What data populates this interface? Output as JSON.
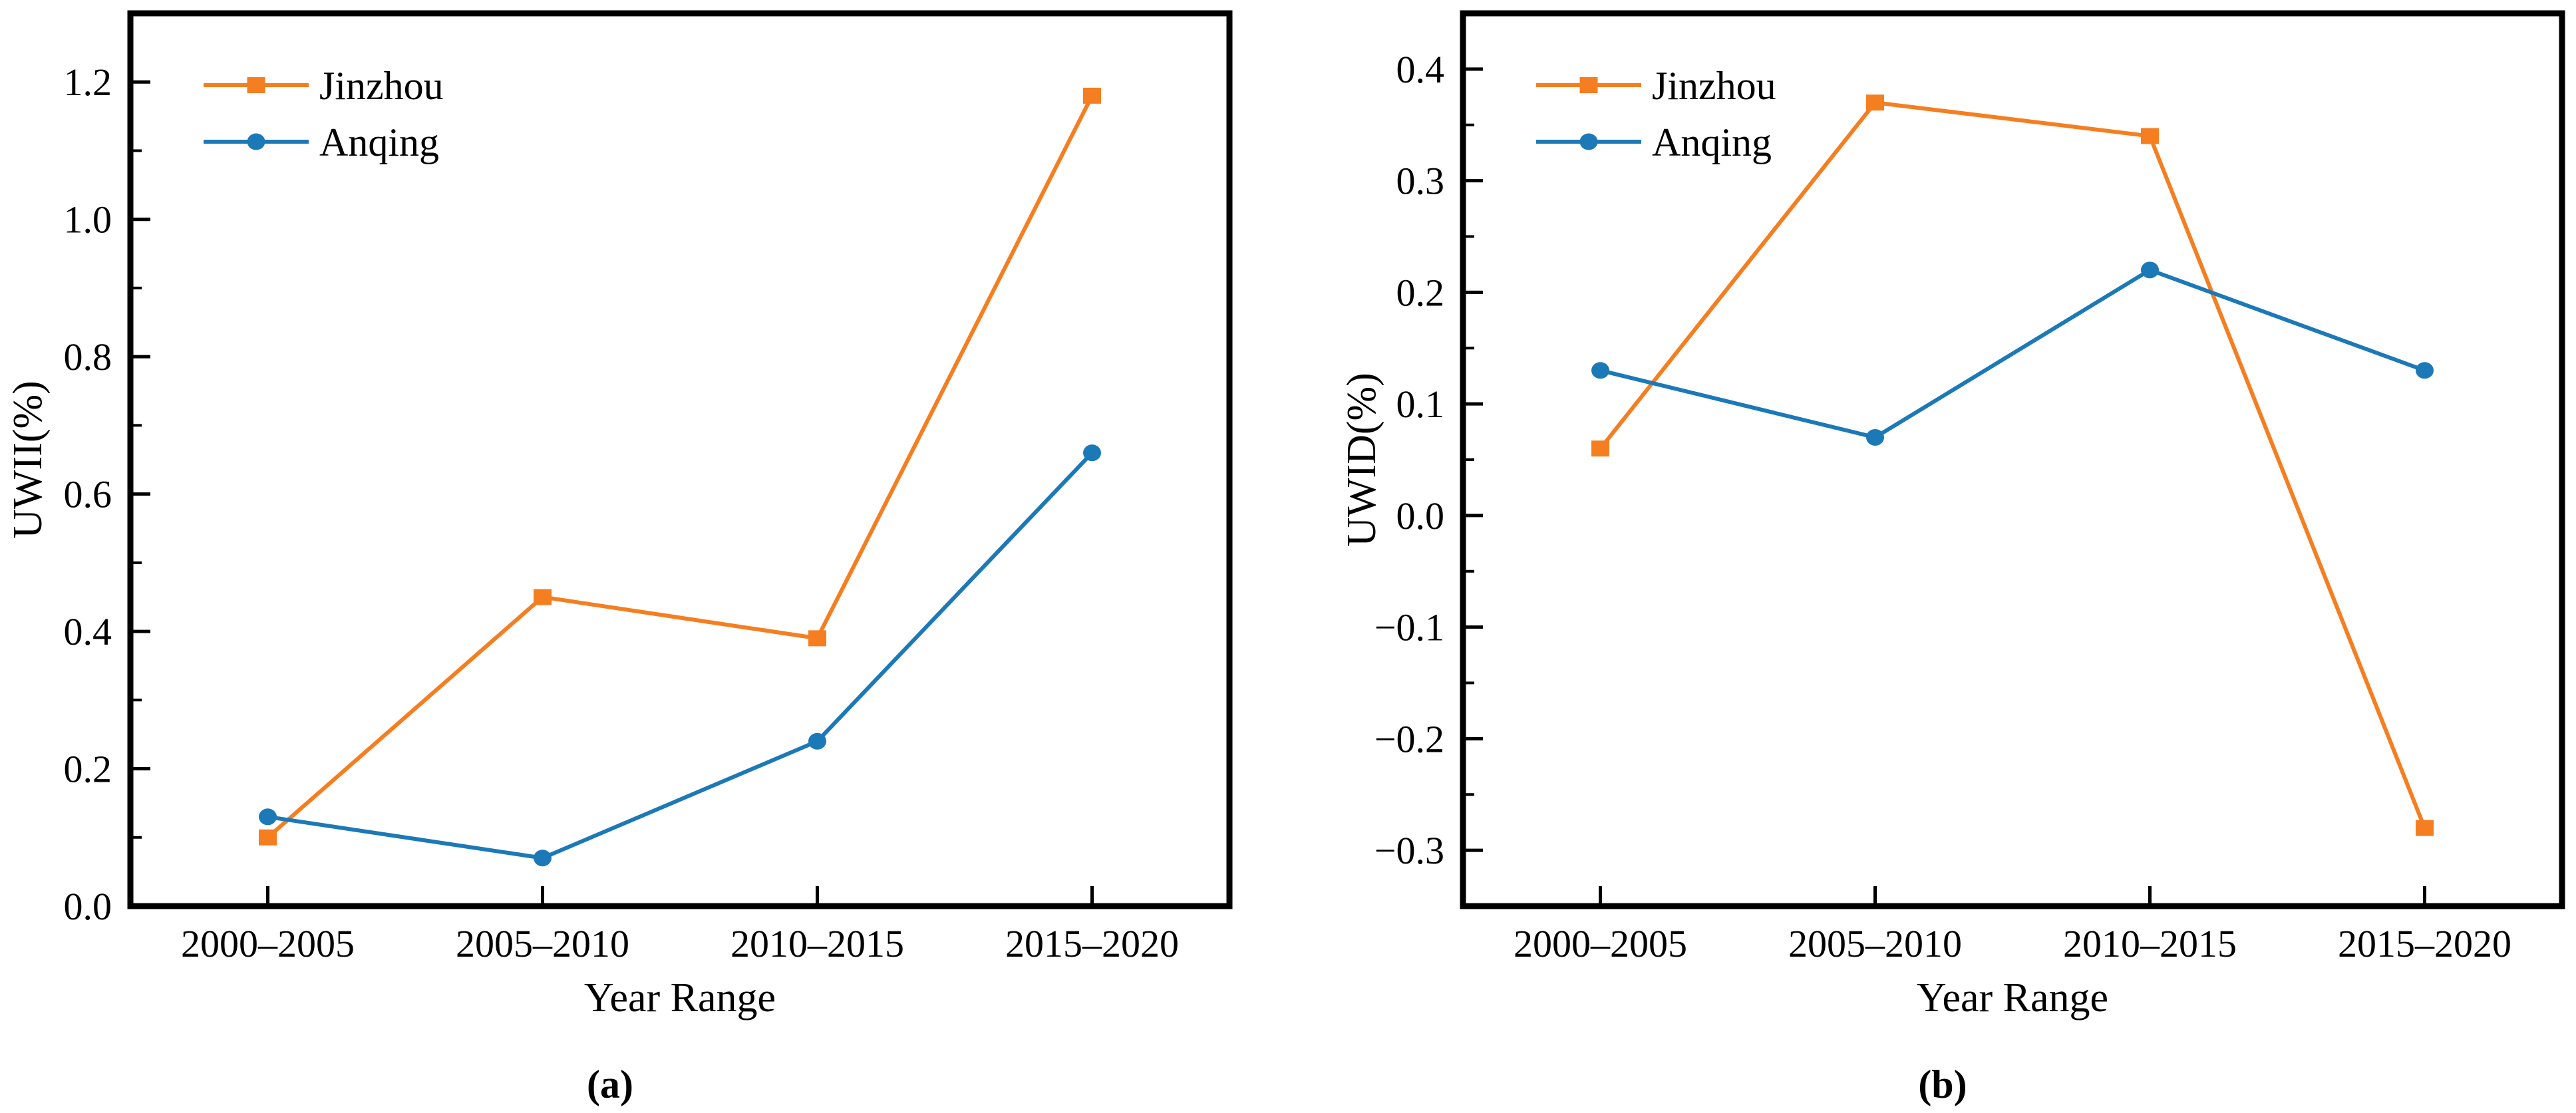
{
  "figure": {
    "background": "#ffffff",
    "type": "dual-panel line chart"
  },
  "chart_data": [
    {
      "id": "a",
      "type": "line",
      "caption": "(a)",
      "xlabel": "Year Range",
      "ylabel": "UWII(%)",
      "categories": [
        "2000–2005",
        "2005–2010",
        "2010–2015",
        "2015–2020"
      ],
      "series": [
        {
          "name": "Jinzhou",
          "marker": "square",
          "color": "#F57E20",
          "values": [
            0.1,
            0.45,
            0.39,
            1.18
          ]
        },
        {
          "name": "Anqing",
          "marker": "circle",
          "color": "#1C79B7",
          "values": [
            0.13,
            0.07,
            0.24,
            0.66
          ]
        }
      ],
      "ylim": [
        0,
        1.3
      ],
      "yticks_major": [
        0.0,
        0.2,
        0.4,
        0.6,
        0.8,
        1.0,
        1.2
      ],
      "ytick_labels": [
        "0.0",
        "0.2",
        "0.4",
        "0.6",
        "0.8",
        "1.0",
        "1.2"
      ],
      "yticks_minor": [
        0.1,
        0.3,
        0.5,
        0.7,
        0.9,
        1.1
      ],
      "legend_position": "top-left",
      "grid": false
    },
    {
      "id": "b",
      "type": "line",
      "caption": "(b)",
      "xlabel": "Year Range",
      "ylabel": "UWID(%)",
      "categories": [
        "2000–2005",
        "2005–2010",
        "2010–2015",
        "2015–2020"
      ],
      "series": [
        {
          "name": "Jinzhou",
          "marker": "square",
          "color": "#F57E20",
          "values": [
            0.06,
            0.37,
            0.34,
            -0.28
          ]
        },
        {
          "name": "Anqing",
          "marker": "circle",
          "color": "#1C79B7",
          "values": [
            0.13,
            0.07,
            0.22,
            0.13
          ]
        }
      ],
      "ylim": [
        -0.35,
        0.45
      ],
      "yticks_major": [
        -0.3,
        -0.2,
        -0.1,
        0.0,
        0.1,
        0.2,
        0.3,
        0.4
      ],
      "ytick_labels": [
        "−0.3",
        "−0.2",
        "−0.1",
        "0.0",
        "0.1",
        "0.2",
        "0.3",
        "0.4"
      ],
      "yticks_minor": [
        -0.25,
        -0.15,
        -0.05,
        0.05,
        0.15,
        0.25,
        0.35
      ],
      "legend_position": "top-left",
      "grid": false
    }
  ],
  "style": {
    "axis_color": "#000000",
    "text_color": "#000000",
    "jinzhou_color": "#F57E20",
    "anqing_color": "#1C79B7"
  }
}
